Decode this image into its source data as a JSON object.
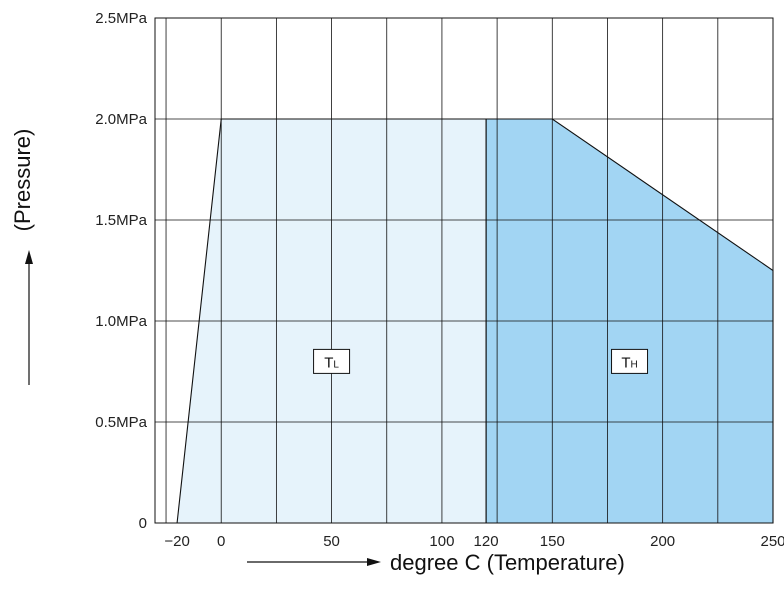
{
  "chart_data": {
    "type": "area",
    "title": "",
    "xlabel": "degree C (Temperature)",
    "ylabel": "(Pressure)",
    "xlim": [
      -30,
      250
    ],
    "ylim": [
      0,
      2.5
    ],
    "grid": true,
    "x_ticks": [
      {
        "value": -20,
        "label": "−20"
      },
      {
        "value": 0,
        "label": "0"
      },
      {
        "value": 50,
        "label": "50"
      },
      {
        "value": 100,
        "label": "100"
      },
      {
        "value": 120,
        "label": "120"
      },
      {
        "value": 150,
        "label": "150"
      },
      {
        "value": 200,
        "label": "200"
      },
      {
        "value": 250,
        "label": "250"
      }
    ],
    "y_ticks": [
      {
        "value": 0,
        "label": "0"
      },
      {
        "value": 0.5,
        "label": "0.5MPa"
      },
      {
        "value": 1.0,
        "label": "1.0MPa"
      },
      {
        "value": 1.5,
        "label": "1.5MPa"
      },
      {
        "value": 2.0,
        "label": "2.0MPa"
      },
      {
        "value": 2.5,
        "label": "2.5MPa"
      }
    ],
    "grid_x": [
      -25,
      0,
      25,
      50,
      75,
      100,
      125,
      150,
      175,
      200,
      225
    ],
    "regions": [
      {
        "label_main": "T",
        "label_sub": "L",
        "color": "#e6f3fb",
        "label_at": [
          50,
          0.8
        ],
        "points": [
          [
            -20,
            0
          ],
          [
            0,
            2.0
          ],
          [
            120,
            2.0
          ],
          [
            120,
            0
          ]
        ]
      },
      {
        "label_main": "T",
        "label_sub": "H",
        "color": "#a2d5f3",
        "label_at": [
          185,
          0.8
        ],
        "points": [
          [
            120,
            0
          ],
          [
            120,
            2.0
          ],
          [
            150,
            2.0
          ],
          [
            250,
            1.25
          ],
          [
            250,
            0
          ]
        ]
      }
    ]
  }
}
